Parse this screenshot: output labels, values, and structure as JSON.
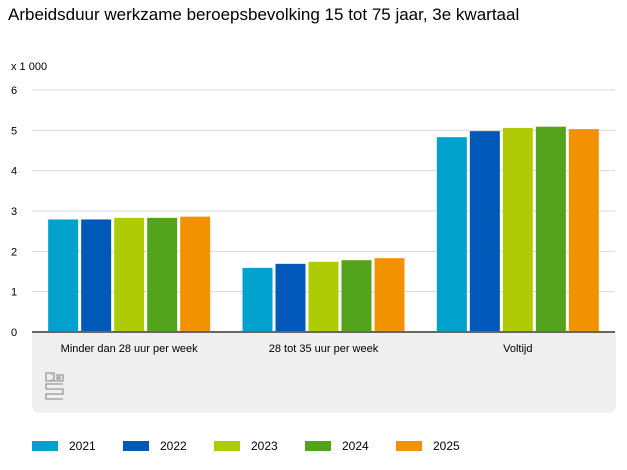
{
  "chart_data": {
    "type": "bar",
    "title": "Arbeidsduur werkzame beroepsbevolking 15 tot 75 jaar, 3e kwartaal",
    "unit_label": "x 1 000",
    "xlabel": "",
    "ylabel": "",
    "ylim": [
      0,
      6
    ],
    "yticks": [
      "0",
      "1",
      "2",
      "3",
      "4",
      "5",
      "6"
    ],
    "grid": true,
    "legend_position": "bottom",
    "categories": [
      "Minder dan 28 uur per week",
      "28 tot 35 uur per week",
      "Voltijd"
    ],
    "series": [
      {
        "name": "2021",
        "color": "#00a1cd",
        "values": [
          2.79,
          1.59,
          4.83
        ]
      },
      {
        "name": "2022",
        "color": "#0058b8",
        "values": [
          2.79,
          1.69,
          4.98
        ]
      },
      {
        "name": "2023",
        "color": "#afcb05",
        "values": [
          2.83,
          1.74,
          5.06
        ]
      },
      {
        "name": "2024",
        "color": "#53a31d",
        "values": [
          2.83,
          1.78,
          5.09
        ]
      },
      {
        "name": "2025",
        "color": "#f39200",
        "values": [
          2.86,
          1.83,
          5.03
        ]
      }
    ]
  },
  "logo": "cbs"
}
